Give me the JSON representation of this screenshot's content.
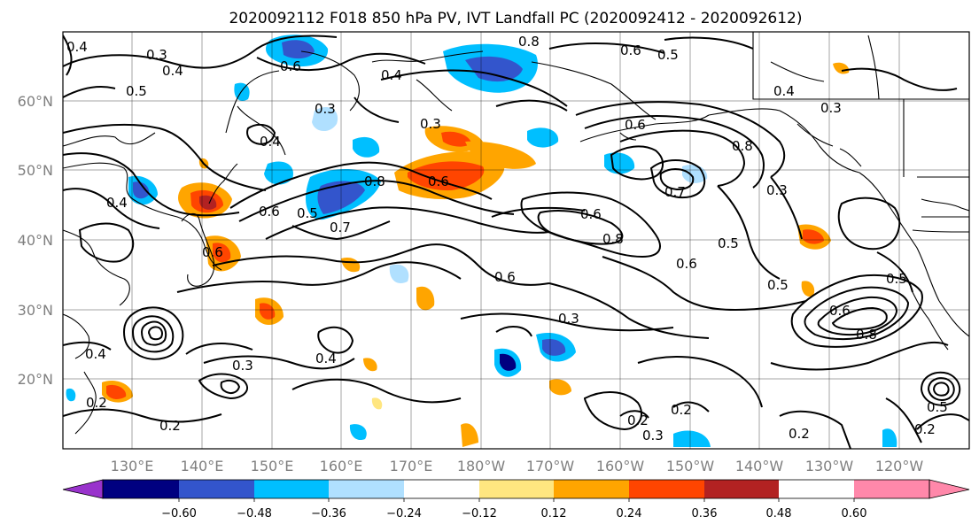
{
  "title": "2020092112 F018 850 hPa PV, IVT Landfall PC (2020092412 - 2020092612)",
  "lat_ticks": [
    "60°N",
    "50°N",
    "40°N",
    "30°N",
    "20°N"
  ],
  "lon_ticks": [
    "130°E",
    "140°E",
    "150°E",
    "160°E",
    "170°E",
    "180°W",
    "170°W",
    "160°W",
    "150°W",
    "140°W",
    "130°W",
    "120°W"
  ],
  "colorbar": {
    "colors": [
      "#9933cc",
      "#000080",
      "#3355cc",
      "#00bfff",
      "#b0e0ff",
      "#ffffff",
      "#ffe680",
      "#ffa500",
      "#ff4500",
      "#b22222",
      "#ff88aa"
    ],
    "labels": [
      "−0.60",
      "−0.48",
      "−0.36",
      "−0.24",
      "−0.12",
      "0.12",
      "0.24",
      "0.36",
      "0.48",
      "0.60"
    ]
  },
  "contour_labels": [
    "0.3",
    "0.4",
    "0.6",
    "0.8",
    "0.5",
    "0.4",
    "0.6",
    "0.5",
    "0.4",
    "0.4",
    "0.3",
    "0.3",
    "0.6",
    "0.4",
    "0.5",
    "0.8",
    "0.7",
    "0.6",
    "0.6",
    "0.8",
    "0.7",
    "0.6",
    "0.6",
    "0.6",
    "0.8",
    "0.6",
    "0.5",
    "0.5",
    "0.3",
    "0.4",
    "0.3",
    "0.2",
    "0.2",
    "0.3",
    "0.2",
    "0.2",
    "0.6",
    "0.8",
    "0.5",
    "0.3",
    "0.2",
    "0.3",
    "0.5",
    "0.4",
    "0.4",
    "0.2"
  ]
}
